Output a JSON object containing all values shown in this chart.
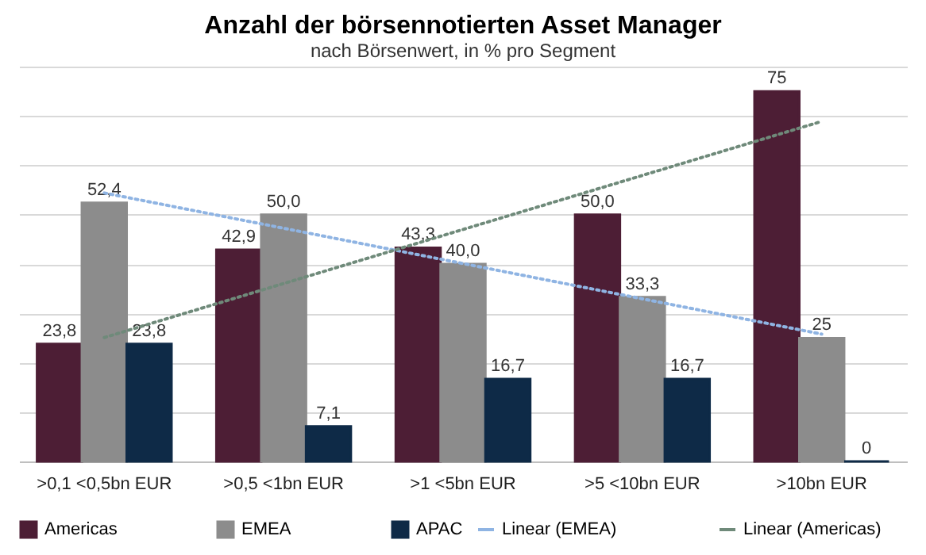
{
  "chart_data": {
    "type": "bar",
    "title": "Anzahl der börsennotierten Asset Manager",
    "subtitle": "nach Börsenwert, in % pro Segment",
    "categories": [
      ">0,1 <0,5bn EUR",
      ">0,5 <1bn EUR",
      ">1 <5bn EUR",
      ">5 <10bn EUR",
      ">10bn EUR"
    ],
    "series": [
      {
        "name": "Americas",
        "color": "#4d1e35",
        "values": [
          23.8,
          42.9,
          43.3,
          50.0,
          75
        ],
        "value_labels": [
          "23,8",
          "42,9",
          "43,3",
          "50,0",
          "75"
        ]
      },
      {
        "name": "EMEA",
        "color": "#8c8c8c",
        "values": [
          52.4,
          50.0,
          40.0,
          33.3,
          25
        ],
        "value_labels": [
          "52,4",
          "50,0",
          "40,0",
          "33,3",
          "25"
        ]
      },
      {
        "name": "APAC",
        "color": "#0e2a47",
        "values": [
          23.8,
          7.1,
          16.7,
          16.7,
          0
        ],
        "value_labels": [
          "23,8",
          "7,1",
          "16,7",
          "16,7",
          "0"
        ]
      },
      {
        "name": "Linear (EMEA)",
        "color": "#8fb4e3",
        "type": "line",
        "line_style": "dotted",
        "x": [
          ">0,1 <0,5bn EUR",
          ">10bn EUR"
        ],
        "values": [
          54.4,
          25.8
        ]
      },
      {
        "name": "Linear (Americas)",
        "color": "#6f8a7a",
        "type": "line",
        "line_style": "dotted",
        "x": [
          ">0,1 <0,5bn EUR",
          ">10bn EUR"
        ],
        "values": [
          25.1,
          68.9
        ]
      }
    ],
    "tick_labels": "x",
    "grid": "y",
    "legend": "bottom"
  }
}
